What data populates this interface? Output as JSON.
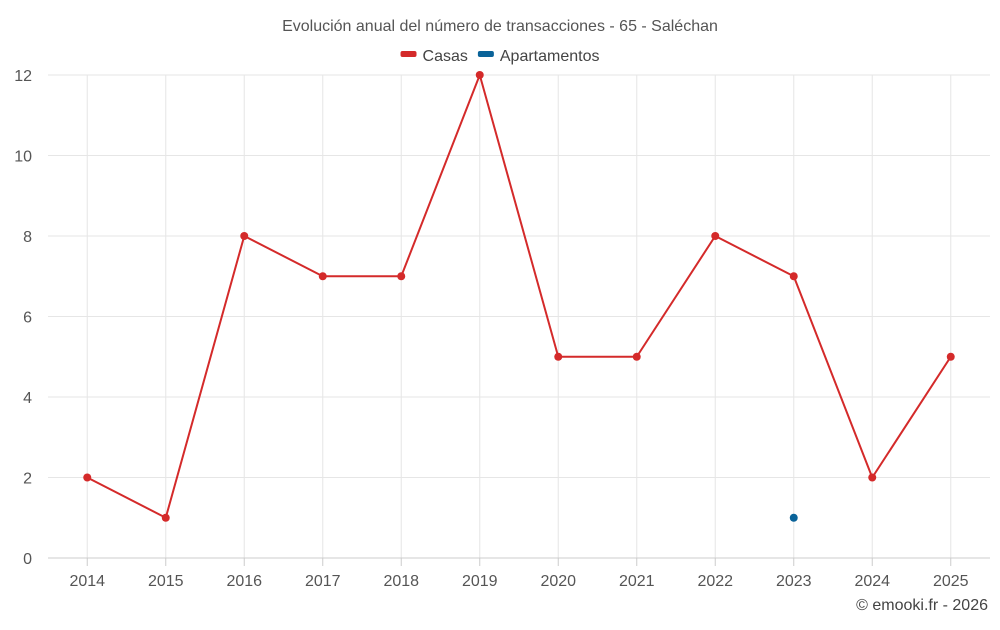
{
  "chart_data": {
    "type": "line",
    "title": "Evolución anual del número de transacciones - 65 - Saléchan",
    "xlabel": "",
    "ylabel": "",
    "categories": [
      "2014",
      "2015",
      "2016",
      "2017",
      "2018",
      "2019",
      "2020",
      "2021",
      "2022",
      "2023",
      "2024",
      "2025"
    ],
    "ylim": [
      0,
      12
    ],
    "yticks": [
      0,
      2,
      4,
      6,
      8,
      10,
      12
    ],
    "grid": true,
    "legend_position": "top-center",
    "series": [
      {
        "name": "Casas",
        "color": "#d42a2a",
        "values": [
          2,
          1,
          8,
          7,
          7,
          12,
          5,
          5,
          8,
          7,
          2,
          5
        ]
      },
      {
        "name": "Apartamentos",
        "color": "#0a6399",
        "values": [
          null,
          null,
          null,
          null,
          null,
          null,
          null,
          null,
          null,
          1,
          null,
          null
        ]
      }
    ]
  },
  "credit": "© emooki.fr - 2026"
}
